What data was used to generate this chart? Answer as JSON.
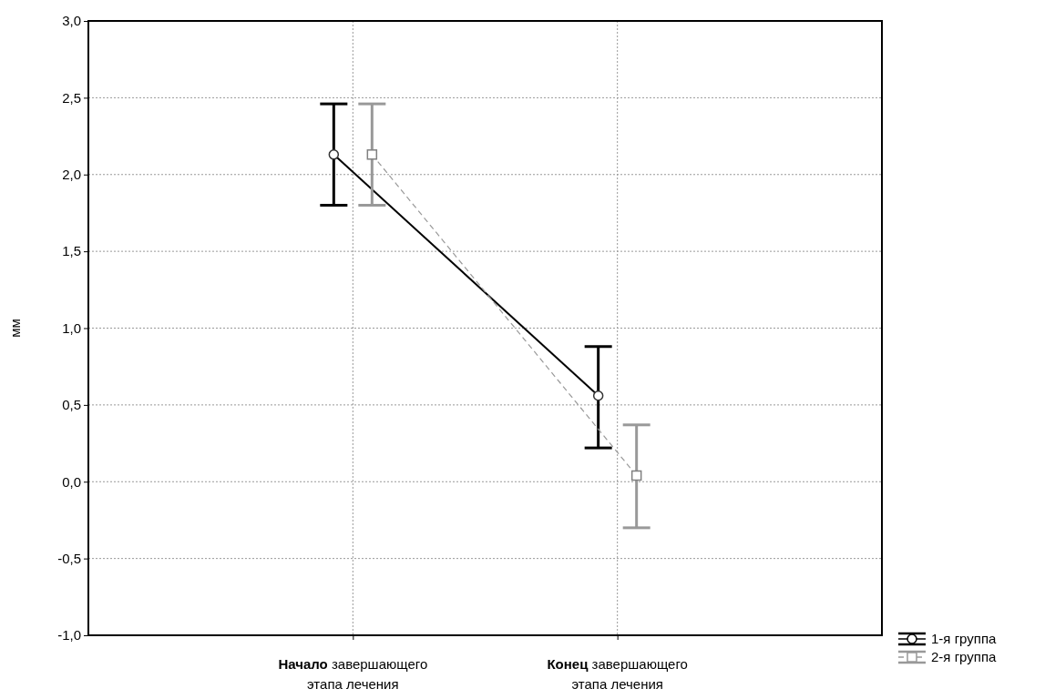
{
  "chart_data": {
    "type": "line",
    "ylabel": "мм",
    "categories": [
      "Начало завершающего этапа лечения",
      "Конец завершающего этапа лечения"
    ],
    "series": [
      {
        "name": "1-я группа",
        "color": "#000000",
        "values": [
          2.13,
          0.56
        ],
        "errors": [
          [
            1.8,
            2.46
          ],
          [
            0.22,
            0.88
          ]
        ],
        "marker": "circle",
        "line_style": "solid"
      },
      {
        "name": "2-я группа",
        "color": "#999999",
        "values": [
          2.13,
          0.04
        ],
        "errors": [
          [
            1.8,
            2.46
          ],
          [
            -0.3,
            0.37
          ]
        ],
        "marker": "square",
        "line_style": "dashed"
      }
    ],
    "ylim": [
      -1,
      3
    ],
    "yticks": [
      {
        "value": -1,
        "label": "-1,0"
      },
      {
        "value": -0.5,
        "label": "-0,5"
      },
      {
        "value": 0,
        "label": "0,0"
      },
      {
        "value": 0.5,
        "label": "0,5"
      },
      {
        "value": 1,
        "label": "1,0"
      },
      {
        "value": 1.5,
        "label": "1,5"
      },
      {
        "value": 2,
        "label": "2,0"
      },
      {
        "value": 2.5,
        "label": "2,5"
      },
      {
        "value": 3,
        "label": "3,0"
      }
    ],
    "grid": true,
    "legend": "bottom right"
  }
}
